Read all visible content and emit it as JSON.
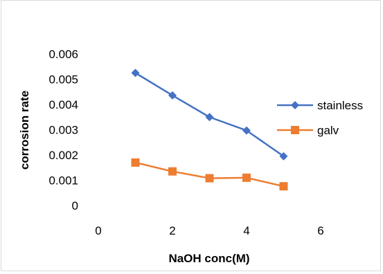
{
  "chart_data": {
    "type": "line",
    "title": "",
    "xlabel": "NaOH conc(M)",
    "ylabel": "corrosion rate",
    "xlim": [
      0,
      6
    ],
    "ylim": [
      0,
      0.006
    ],
    "x_ticks": [
      "0",
      "2",
      "4",
      "6"
    ],
    "y_ticks": [
      "0",
      "0.001",
      "0.002",
      "0.003",
      "0.004",
      "0.005",
      "0.006"
    ],
    "grid": false,
    "legend_position": "right",
    "series": [
      {
        "name": "stainless",
        "color": "#4472c4",
        "marker": "diamond",
        "x": [
          1,
          2,
          3,
          4,
          5
        ],
        "values": [
          0.00525,
          0.00436,
          0.0035,
          0.00297,
          0.00195
        ]
      },
      {
        "name": "galv",
        "color": "#ed7d31",
        "marker": "square",
        "x": [
          1,
          2,
          3,
          4,
          5
        ],
        "values": [
          0.0017,
          0.00135,
          0.00108,
          0.0011,
          0.00076
        ]
      }
    ]
  }
}
